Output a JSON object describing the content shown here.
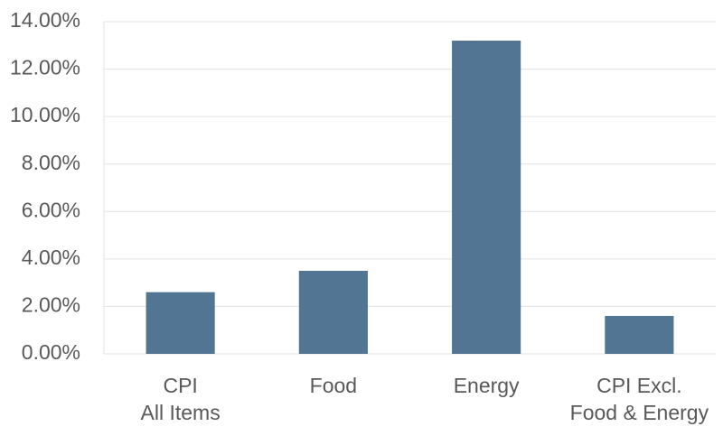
{
  "chart_data": {
    "type": "bar",
    "categories": [
      "CPI\nAll Items",
      "Food",
      "Energy",
      "CPI  Excl.\nFood & Energy"
    ],
    "values": [
      2.6,
      3.5,
      13.2,
      1.6
    ],
    "color": "#527594",
    "ylim": [
      0,
      14
    ],
    "yticks": [
      {
        "value": 0,
        "label": "0.00%"
      },
      {
        "value": 2,
        "label": "2.00%"
      },
      {
        "value": 4,
        "label": "4.00%"
      },
      {
        "value": 6,
        "label": "6.00%"
      },
      {
        "value": 8,
        "label": "8.00%"
      },
      {
        "value": 10,
        "label": "10.00%"
      },
      {
        "value": 12,
        "label": "12.00%"
      },
      {
        "value": 14,
        "label": "14.00%"
      }
    ],
    "grid": true
  }
}
